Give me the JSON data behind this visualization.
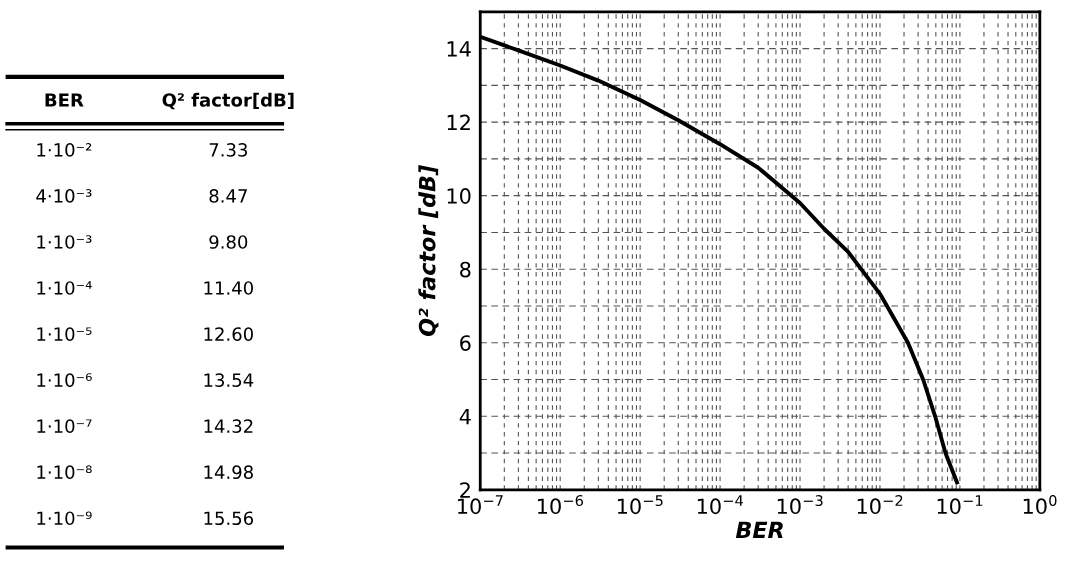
{
  "chart_data": [
    {
      "type": "other",
      "xlabel": "BER",
      "ylabel": "Q² factor[dB]",
      "categories": [
        "1·10⁻²",
        "4·10⁻³",
        "1·10⁻³",
        "1·10⁻⁴",
        "1·10⁻⁵",
        "1·10⁻⁶",
        "1·10⁻⁷",
        "1·10⁻⁸",
        "1·10⁻⁹"
      ],
      "value_labels": [
        "7.33",
        "8.47",
        "9.80",
        "11.40",
        "12.60",
        "13.54",
        "14.32",
        "14.98",
        "15.56"
      ]
    },
    {
      "type": "line",
      "xlabel": "BER",
      "ylabel": "Q² factor [dB]",
      "log": "x",
      "grid": true,
      "marker": "none",
      "line_style": "solid",
      "xlim": [
        1e-07,
        1
      ],
      "ylim": [
        2,
        15
      ],
      "xticks": [
        {
          "value": 1e-07,
          "label": "10$^{−7}$"
        },
        {
          "value": 1e-06,
          "label": "10$^{−6}$"
        },
        {
          "value": 1e-05,
          "label": "10$^{−5}$"
        },
        {
          "value": 0.0001,
          "label": "10$^{−4}$"
        },
        {
          "value": 0.001,
          "label": "10$^{−3}$"
        },
        {
          "value": 0.01,
          "label": "10$^{−2}$"
        },
        {
          "value": 0.1,
          "label": "10$^{−1}$"
        },
        {
          "value": 1,
          "label": "10$^{0}$"
        }
      ],
      "yticks": [
        2,
        4,
        6,
        8,
        10,
        12,
        14
      ],
      "series": [
        {
          "color": "#000000",
          "x": [
            1e-07,
            3e-07,
            1e-06,
            3e-06,
            1e-05,
            3e-05,
            0.0001,
            0.0003,
            0.001,
            0.002,
            0.004,
            0.01,
            0.0224,
            0.0347,
            0.049,
            0.066,
            0.092
          ],
          "values": [
            14.32,
            13.95,
            13.54,
            13.13,
            12.6,
            12.05,
            11.4,
            10.76,
            9.8,
            9.1,
            8.47,
            7.33,
            6,
            5,
            4,
            3,
            2.2
          ]
        }
      ]
    }
  ]
}
